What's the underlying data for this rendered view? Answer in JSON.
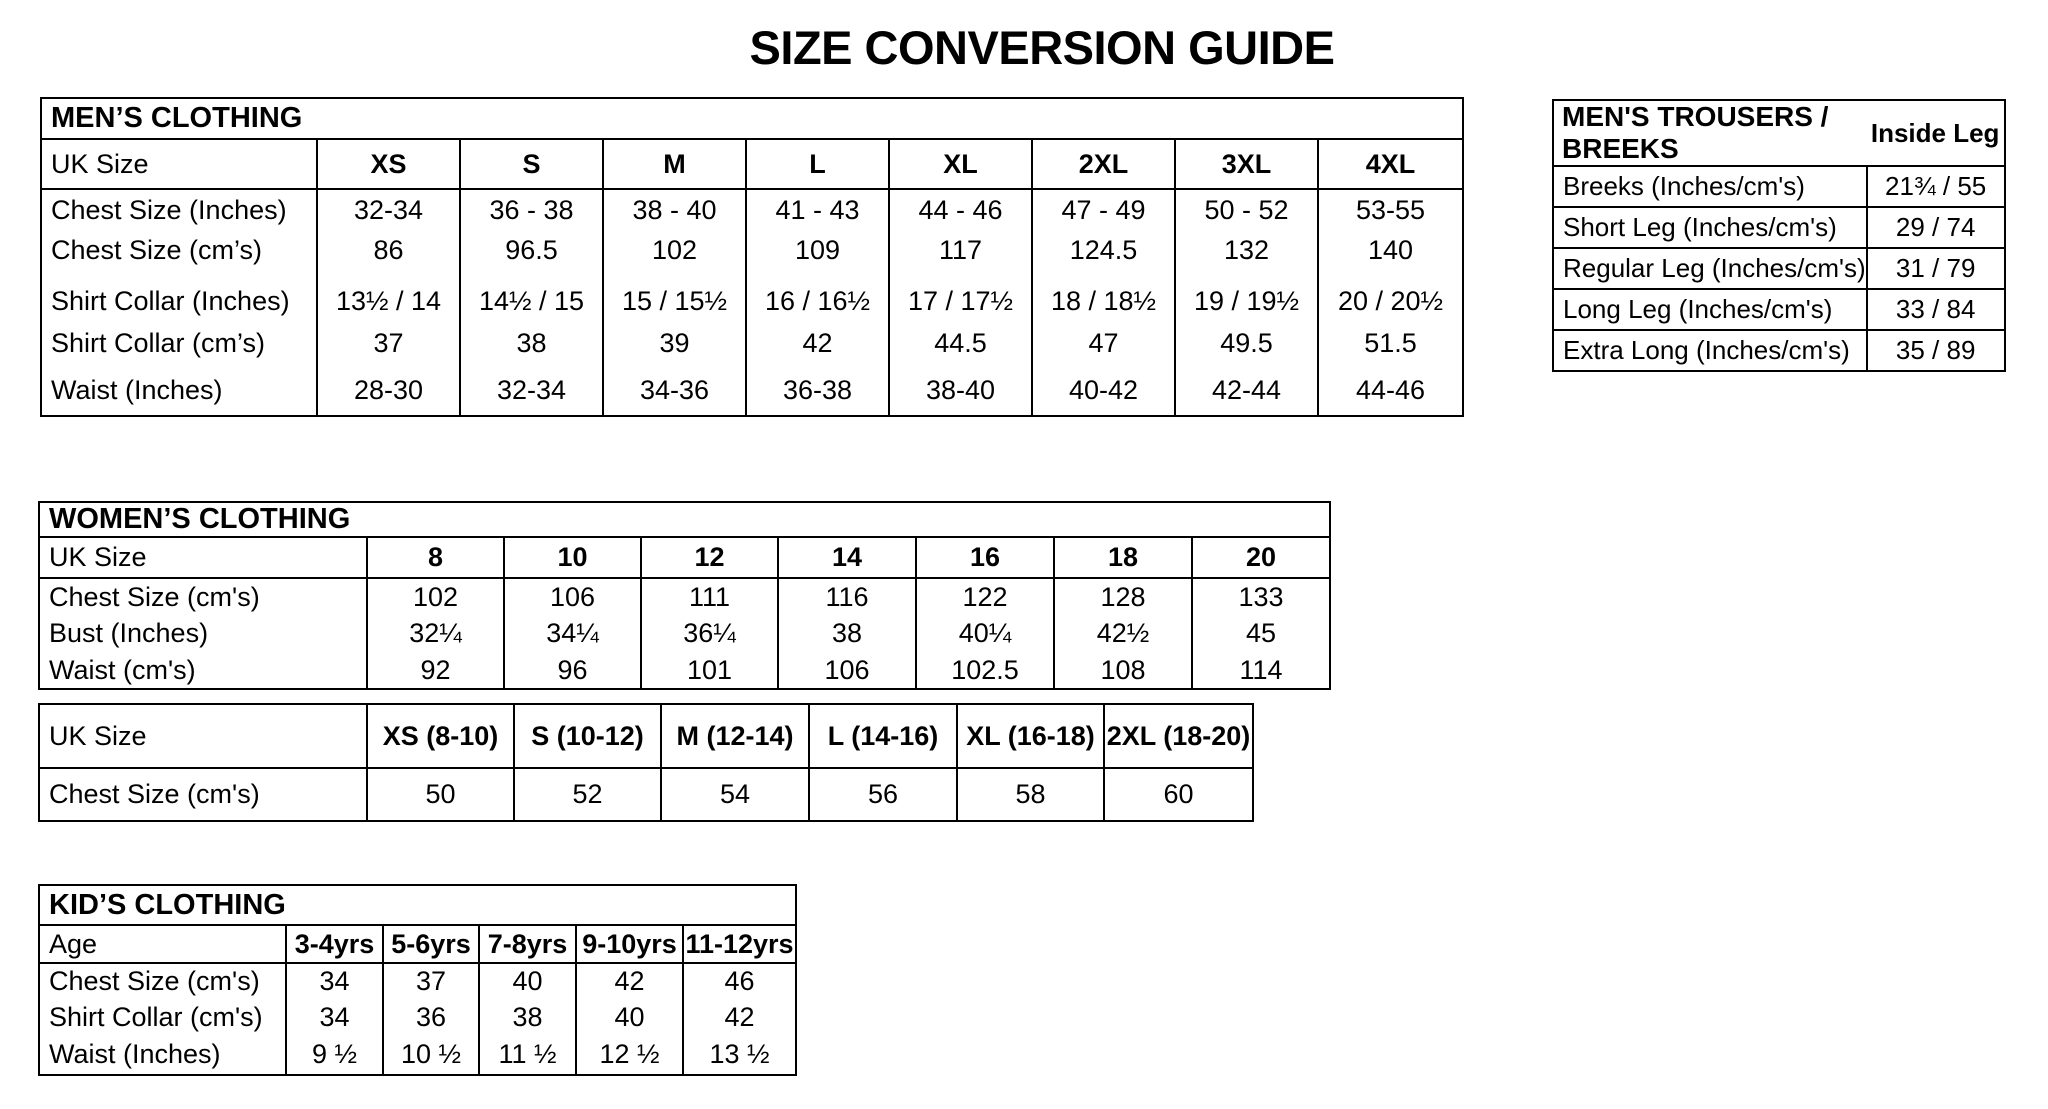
{
  "page": {
    "title": "SIZE CONVERSION GUIDE"
  },
  "mens_clothing": {
    "title": "MEN’S CLOTHING",
    "size_label": "UK Size",
    "sizes": [
      "XS",
      "S",
      "M",
      "L",
      "XL",
      "2XL",
      "3XL",
      "4XL"
    ],
    "rows": [
      {
        "label": "Chest Size (Inches)",
        "values": [
          "32-34",
          "36 - 38",
          "38 - 40",
          "41 - 43",
          "44 - 46",
          "47 - 49",
          "50 - 52",
          "53-55"
        ]
      },
      {
        "label": "Chest Size (cm’s)",
        "values": [
          "86",
          "96.5",
          "102",
          "109",
          "117",
          "124.5",
          "132",
          "140"
        ]
      },
      {
        "label": "Shirt Collar (Inches)",
        "values": [
          "13½ / 14",
          "14½ / 15",
          "15 / 15½",
          "16 / 16½",
          "17 / 17½",
          "18 / 18½",
          "19 / 19½",
          "20 / 20½"
        ]
      },
      {
        "label": "Shirt Collar (cm’s)",
        "values": [
          "37",
          "38",
          "39",
          "42",
          "44.5",
          "47",
          "49.5",
          "51.5"
        ]
      },
      {
        "label": "Waist (Inches)",
        "values": [
          "28-30",
          "32-34",
          "34-36",
          "36-38",
          "38-40",
          "40-42",
          "42-44",
          "44-46"
        ]
      }
    ]
  },
  "mens_trousers": {
    "title": "MEN'S TROUSERS / BREEKS",
    "value_header": "Inside Leg",
    "rows": [
      {
        "label": "Breeks (Inches/cm's)",
        "value": "21¾ / 55"
      },
      {
        "label": "Short Leg (Inches/cm's)",
        "value": "29 / 74"
      },
      {
        "label": "Regular Leg (Inches/cm's)",
        "value": "31 / 79"
      },
      {
        "label": "Long Leg (Inches/cm's)",
        "value": "33 / 84"
      },
      {
        "label": "Extra Long (Inches/cm's)",
        "value": "35 / 89"
      }
    ]
  },
  "womens_clothing": {
    "title": "WOMEN’S CLOTHING",
    "size_label": "UK Size",
    "sizes": [
      "8",
      "10",
      "12",
      "14",
      "16",
      "18",
      "20"
    ],
    "rows": [
      {
        "label": "Chest Size (cm's)",
        "values": [
          "102",
          "106",
          "111",
          "116",
          "122",
          "128",
          "133"
        ]
      },
      {
        "label": "Bust (Inches)",
        "values": [
          "32¼",
          "34¼",
          "36¼",
          "38",
          "40¼",
          "42½",
          "45"
        ]
      },
      {
        "label": "Waist (cm's)",
        "values": [
          "92",
          "96",
          "101",
          "106",
          "102.5",
          "108",
          "114"
        ]
      }
    ]
  },
  "womens_alpha": {
    "size_label": "UK Size",
    "sizes": [
      "XS (8-10)",
      "S (10-12)",
      "M (12-14)",
      "L (14-16)",
      "XL (16-18)",
      "2XL (18-20)"
    ],
    "rows": [
      {
        "label": "Chest Size (cm's)",
        "values": [
          "50",
          "52",
          "54",
          "56",
          "58",
          "60"
        ]
      }
    ]
  },
  "kids_clothing": {
    "title": "KID’S CLOTHING",
    "size_label": "Age",
    "sizes": [
      "3-4yrs",
      "5-6yrs",
      "7-8yrs",
      "9-10yrs",
      "11-12yrs"
    ],
    "rows": [
      {
        "label": "Chest Size (cm's)",
        "values": [
          "34",
          "37",
          "40",
          "42",
          "46"
        ]
      },
      {
        "label": "Shirt Collar (cm's)",
        "values": [
          "34",
          "36",
          "38",
          "40",
          "42"
        ]
      },
      {
        "label": "Waist (Inches)",
        "values": [
          "9 ½",
          "10 ½",
          "11 ½",
          "12 ½",
          "13 ½"
        ]
      }
    ]
  }
}
